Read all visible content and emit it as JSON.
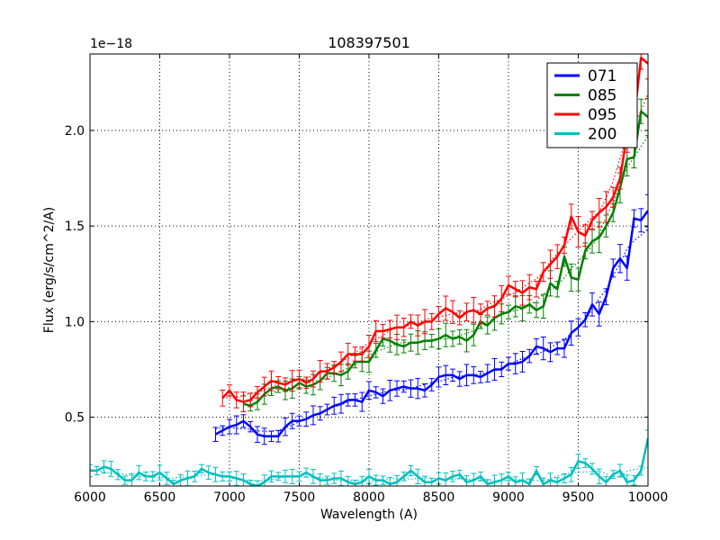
{
  "chart_data": {
    "type": "line",
    "title": "108397501",
    "xlabel": "Wavelength (A)",
    "ylabel": "Flux (erg/s/cm^2/A)",
    "offset_label": "1e−18",
    "xlim": [
      6000,
      10000
    ],
    "ylim": [
      0.14,
      2.4
    ],
    "xticks": [
      6000,
      6500,
      7000,
      7500,
      8000,
      8500,
      9000,
      9500,
      10000
    ],
    "yticks": [
      0.5,
      1.0,
      1.5,
      2.0
    ],
    "ytick_labels": [
      "0.5",
      "1.0",
      "1.5",
      "2.0"
    ],
    "grid": true,
    "legend_position": "top-right",
    "series": [
      {
        "name": "071",
        "color": "#0000ff",
        "points": [
          [
            6900,
            0.41
          ],
          [
            6950,
            0.43
          ],
          [
            7000,
            0.45
          ],
          [
            7050,
            0.46
          ],
          [
            7100,
            0.48
          ],
          [
            7150,
            0.45
          ],
          [
            7200,
            0.41
          ],
          [
            7250,
            0.4
          ],
          [
            7300,
            0.4
          ],
          [
            7350,
            0.4
          ],
          [
            7400,
            0.45
          ],
          [
            7450,
            0.48
          ],
          [
            7500,
            0.48
          ],
          [
            7550,
            0.49
          ],
          [
            7600,
            0.51
          ],
          [
            7650,
            0.52
          ],
          [
            7700,
            0.54
          ],
          [
            7750,
            0.56
          ],
          [
            7800,
            0.57
          ],
          [
            7850,
            0.59
          ],
          [
            7900,
            0.59
          ],
          [
            7950,
            0.58
          ],
          [
            8000,
            0.64
          ],
          [
            8050,
            0.63
          ],
          [
            8100,
            0.61
          ],
          [
            8150,
            0.64
          ],
          [
            8200,
            0.65
          ],
          [
            8250,
            0.66
          ],
          [
            8300,
            0.65
          ],
          [
            8350,
            0.65
          ],
          [
            8400,
            0.64
          ],
          [
            8450,
            0.67
          ],
          [
            8500,
            0.71
          ],
          [
            8550,
            0.72
          ],
          [
            8600,
            0.72
          ],
          [
            8650,
            0.7
          ],
          [
            8700,
            0.72
          ],
          [
            8750,
            0.72
          ],
          [
            8800,
            0.71
          ],
          [
            8850,
            0.73
          ],
          [
            8900,
            0.75
          ],
          [
            8950,
            0.75
          ],
          [
            9000,
            0.78
          ],
          [
            9050,
            0.78
          ],
          [
            9100,
            0.79
          ],
          [
            9150,
            0.82
          ],
          [
            9200,
            0.87
          ],
          [
            9250,
            0.86
          ],
          [
            9300,
            0.84
          ],
          [
            9350,
            0.86
          ],
          [
            9400,
            0.86
          ],
          [
            9450,
            0.94
          ],
          [
            9500,
            0.97
          ],
          [
            9550,
            1.01
          ],
          [
            9600,
            1.09
          ],
          [
            9650,
            1.04
          ],
          [
            9700,
            1.13
          ],
          [
            9750,
            1.28
          ],
          [
            9800,
            1.33
          ],
          [
            9850,
            1.28
          ],
          [
            9900,
            1.54
          ],
          [
            9950,
            1.53
          ],
          [
            10000,
            1.58
          ]
        ]
      },
      {
        "name": "085",
        "color": "#008000",
        "points": [
          [
            7100,
            0.57
          ],
          [
            7150,
            0.56
          ],
          [
            7200,
            0.58
          ],
          [
            7250,
            0.62
          ],
          [
            7300,
            0.65
          ],
          [
            7350,
            0.66
          ],
          [
            7400,
            0.64
          ],
          [
            7450,
            0.65
          ],
          [
            7500,
            0.68
          ],
          [
            7550,
            0.66
          ],
          [
            7600,
            0.67
          ],
          [
            7650,
            0.69
          ],
          [
            7700,
            0.73
          ],
          [
            7750,
            0.73
          ],
          [
            7800,
            0.72
          ],
          [
            7850,
            0.74
          ],
          [
            7900,
            0.79
          ],
          [
            7950,
            0.79
          ],
          [
            8000,
            0.79
          ],
          [
            8050,
            0.85
          ],
          [
            8100,
            0.91
          ],
          [
            8150,
            0.9
          ],
          [
            8200,
            0.88
          ],
          [
            8250,
            0.87
          ],
          [
            8300,
            0.89
          ],
          [
            8350,
            0.89
          ],
          [
            8400,
            0.9
          ],
          [
            8450,
            0.9
          ],
          [
            8500,
            0.91
          ],
          [
            8550,
            0.93
          ],
          [
            8600,
            0.91
          ],
          [
            8650,
            0.92
          ],
          [
            8700,
            0.9
          ],
          [
            8750,
            0.93
          ],
          [
            8800,
            1.0
          ],
          [
            8850,
            0.98
          ],
          [
            8900,
            1.02
          ],
          [
            8950,
            1.04
          ],
          [
            9000,
            1.05
          ],
          [
            9050,
            1.08
          ],
          [
            9100,
            1.07
          ],
          [
            9150,
            1.09
          ],
          [
            9200,
            1.06
          ],
          [
            9250,
            1.08
          ],
          [
            9300,
            1.2
          ],
          [
            9350,
            1.17
          ],
          [
            9400,
            1.34
          ],
          [
            9450,
            1.23
          ],
          [
            9500,
            1.22
          ],
          [
            9550,
            1.37
          ],
          [
            9600,
            1.42
          ],
          [
            9650,
            1.44
          ],
          [
            9700,
            1.5
          ],
          [
            9750,
            1.57
          ],
          [
            9800,
            1.7
          ],
          [
            9850,
            1.85
          ],
          [
            9900,
            1.86
          ],
          [
            9950,
            2.1
          ],
          [
            10000,
            2.07
          ]
        ]
      },
      {
        "name": "095",
        "color": "#ff0000",
        "points": [
          [
            6950,
            0.6
          ],
          [
            7000,
            0.64
          ],
          [
            7050,
            0.59
          ],
          [
            7100,
            0.58
          ],
          [
            7150,
            0.59
          ],
          [
            7200,
            0.63
          ],
          [
            7250,
            0.66
          ],
          [
            7300,
            0.69
          ],
          [
            7350,
            0.68
          ],
          [
            7400,
            0.67
          ],
          [
            7450,
            0.69
          ],
          [
            7500,
            0.7
          ],
          [
            7550,
            0.68
          ],
          [
            7600,
            0.7
          ],
          [
            7650,
            0.74
          ],
          [
            7700,
            0.74
          ],
          [
            7750,
            0.76
          ],
          [
            7800,
            0.79
          ],
          [
            7850,
            0.83
          ],
          [
            7900,
            0.83
          ],
          [
            7950,
            0.83
          ],
          [
            8000,
            0.87
          ],
          [
            8050,
            0.95
          ],
          [
            8100,
            0.95
          ],
          [
            8150,
            0.96
          ],
          [
            8200,
            0.97
          ],
          [
            8250,
            0.97
          ],
          [
            8300,
            1.0
          ],
          [
            8350,
            0.98
          ],
          [
            8400,
            1.0
          ],
          [
            8450,
            1.0
          ],
          [
            8500,
            1.04
          ],
          [
            8550,
            1.07
          ],
          [
            8600,
            1.05
          ],
          [
            8650,
            1.02
          ],
          [
            8700,
            1.05
          ],
          [
            8750,
            1.06
          ],
          [
            8800,
            1.04
          ],
          [
            8850,
            1.07
          ],
          [
            8900,
            1.08
          ],
          [
            8950,
            1.12
          ],
          [
            9000,
            1.19
          ],
          [
            9050,
            1.17
          ],
          [
            9100,
            1.15
          ],
          [
            9150,
            1.18
          ],
          [
            9200,
            1.17
          ],
          [
            9250,
            1.26
          ],
          [
            9300,
            1.3
          ],
          [
            9350,
            1.34
          ],
          [
            9400,
            1.4
          ],
          [
            9450,
            1.55
          ],
          [
            9500,
            1.47
          ],
          [
            9550,
            1.45
          ],
          [
            9600,
            1.53
          ],
          [
            9650,
            1.57
          ],
          [
            9700,
            1.6
          ],
          [
            9750,
            1.65
          ],
          [
            9800,
            1.75
          ],
          [
            9850,
            1.98
          ],
          [
            9900,
            2.06
          ],
          [
            9950,
            2.38
          ],
          [
            10000,
            2.35
          ]
        ]
      },
      {
        "name": "200",
        "color": "#00bfbf",
        "points": [
          [
            6000,
            0.22
          ],
          [
            6050,
            0.22
          ],
          [
            6100,
            0.24
          ],
          [
            6150,
            0.23
          ],
          [
            6200,
            0.2
          ],
          [
            6250,
            0.17
          ],
          [
            6300,
            0.17
          ],
          [
            6350,
            0.21
          ],
          [
            6400,
            0.19
          ],
          [
            6450,
            0.19
          ],
          [
            6500,
            0.21
          ],
          [
            6550,
            0.18
          ],
          [
            6600,
            0.15
          ],
          [
            6650,
            0.17
          ],
          [
            6700,
            0.18
          ],
          [
            6750,
            0.19
          ],
          [
            6800,
            0.23
          ],
          [
            6850,
            0.21
          ],
          [
            6900,
            0.2
          ],
          [
            6950,
            0.19
          ],
          [
            7000,
            0.19
          ],
          [
            7050,
            0.18
          ],
          [
            7100,
            0.17
          ],
          [
            7150,
            0.15
          ],
          [
            7200,
            0.14
          ],
          [
            7250,
            0.16
          ],
          [
            7300,
            0.19
          ],
          [
            7350,
            0.19
          ],
          [
            7400,
            0.19
          ],
          [
            7450,
            0.19
          ],
          [
            7500,
            0.19
          ],
          [
            7550,
            0.21
          ],
          [
            7600,
            0.19
          ],
          [
            7650,
            0.17
          ],
          [
            7700,
            0.17
          ],
          [
            7750,
            0.18
          ],
          [
            7800,
            0.18
          ],
          [
            7850,
            0.16
          ],
          [
            7900,
            0.15
          ],
          [
            7950,
            0.16
          ],
          [
            8000,
            0.19
          ],
          [
            8050,
            0.17
          ],
          [
            8100,
            0.17
          ],
          [
            8150,
            0.15
          ],
          [
            8200,
            0.16
          ],
          [
            8250,
            0.19
          ],
          [
            8300,
            0.22
          ],
          [
            8350,
            0.19
          ],
          [
            8400,
            0.16
          ],
          [
            8450,
            0.16
          ],
          [
            8500,
            0.18
          ],
          [
            8550,
            0.17
          ],
          [
            8600,
            0.19
          ],
          [
            8650,
            0.2
          ],
          [
            8700,
            0.16
          ],
          [
            8750,
            0.17
          ],
          [
            8800,
            0.19
          ],
          [
            8850,
            0.15
          ],
          [
            8900,
            0.16
          ],
          [
            8950,
            0.17
          ],
          [
            9000,
            0.19
          ],
          [
            9050,
            0.16
          ],
          [
            9100,
            0.17
          ],
          [
            9150,
            0.15
          ],
          [
            9200,
            0.22
          ],
          [
            9250,
            0.15
          ],
          [
            9300,
            0.17
          ],
          [
            9350,
            0.16
          ],
          [
            9400,
            0.18
          ],
          [
            9450,
            0.2
          ],
          [
            9500,
            0.27
          ],
          [
            9550,
            0.26
          ],
          [
            9600,
            0.23
          ],
          [
            9650,
            0.19
          ],
          [
            9700,
            0.16
          ],
          [
            9750,
            0.2
          ],
          [
            9800,
            0.22
          ],
          [
            9850,
            0.16
          ],
          [
            9900,
            0.17
          ],
          [
            9950,
            0.22
          ],
          [
            10000,
            0.39
          ]
        ]
      }
    ]
  }
}
